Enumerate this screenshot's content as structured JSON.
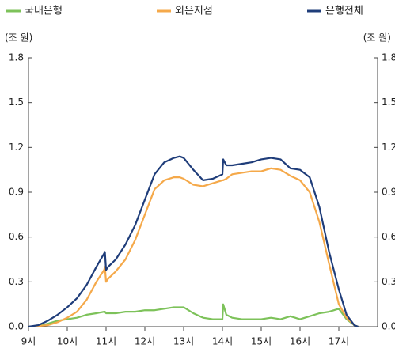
{
  "chart_data": {
    "type": "line",
    "y_label": "(조 원)",
    "y2_label": "(조 원)",
    "x": [
      9.0,
      9.25,
      9.5,
      9.75,
      10.0,
      10.25,
      10.5,
      10.75,
      10.95,
      10.97,
      11.0,
      11.05,
      11.25,
      11.5,
      11.75,
      12.0,
      12.25,
      12.5,
      12.75,
      12.9,
      13.0,
      13.25,
      13.5,
      13.75,
      14.0,
      14.02,
      14.1,
      14.25,
      14.5,
      14.75,
      15.0,
      15.25,
      15.5,
      15.75,
      16.0,
      16.25,
      16.5,
      16.75,
      17.0,
      17.2,
      17.4,
      17.5
    ],
    "series": [
      {
        "name": "국내은행",
        "color": "#7dc25a",
        "values": [
          0,
          0.005,
          0.02,
          0.04,
          0.05,
          0.06,
          0.08,
          0.09,
          0.1,
          0.1,
          0.09,
          0.09,
          0.09,
          0.1,
          0.1,
          0.11,
          0.11,
          0.12,
          0.13,
          0.13,
          0.13,
          0.09,
          0.06,
          0.05,
          0.05,
          0.15,
          0.08,
          0.06,
          0.05,
          0.05,
          0.05,
          0.06,
          0.05,
          0.07,
          0.05,
          0.07,
          0.09,
          0.1,
          0.12,
          0.05,
          0.01,
          0
        ]
      },
      {
        "name": "외은지점",
        "color": "#f5a94a",
        "values": [
          0,
          0.005,
          0.01,
          0.03,
          0.06,
          0.1,
          0.18,
          0.3,
          0.38,
          0.4,
          0.3,
          0.32,
          0.37,
          0.45,
          0.58,
          0.75,
          0.92,
          0.98,
          1.0,
          1.0,
          0.99,
          0.95,
          0.94,
          0.96,
          0.98,
          0.98,
          0.99,
          1.02,
          1.03,
          1.04,
          1.04,
          1.06,
          1.05,
          1.01,
          0.98,
          0.9,
          0.7,
          0.42,
          0.15,
          0.06,
          0.01,
          0
        ]
      },
      {
        "name": "은행전체",
        "color": "#1f3d7a",
        "values": [
          0,
          0.01,
          0.04,
          0.08,
          0.13,
          0.19,
          0.28,
          0.4,
          0.49,
          0.5,
          0.38,
          0.4,
          0.45,
          0.55,
          0.68,
          0.85,
          1.02,
          1.1,
          1.13,
          1.14,
          1.13,
          1.05,
          0.98,
          0.99,
          1.02,
          1.12,
          1.08,
          1.08,
          1.09,
          1.1,
          1.12,
          1.13,
          1.12,
          1.06,
          1.05,
          1.0,
          0.8,
          0.5,
          0.25,
          0.08,
          0.01,
          0
        ]
      }
    ],
    "xlim": [
      9,
      18
    ],
    "xticks": [
      {
        "value": 9,
        "label": "9시"
      },
      {
        "value": 10,
        "label": "10시"
      },
      {
        "value": 11,
        "label": "11시"
      },
      {
        "value": 12,
        "label": "12시"
      },
      {
        "value": 13,
        "label": "13시"
      },
      {
        "value": 14,
        "label": "14시"
      },
      {
        "value": 15,
        "label": "15시"
      },
      {
        "value": 16,
        "label": "16시"
      },
      {
        "value": 17,
        "label": "17시"
      }
    ],
    "ylim": [
      0,
      1.8
    ],
    "yticks": [
      {
        "value": 0,
        "label": "0.0"
      },
      0.3,
      0.6,
      0.9,
      1.2,
      1.5,
      1.8
    ],
    "y2lim": [
      0,
      1.8
    ],
    "y2ticks": [
      {
        "value": 0,
        "label": "0.0"
      },
      0.3,
      0.6,
      0.9,
      1.2,
      1.5,
      1.8
    ],
    "grid": false
  }
}
